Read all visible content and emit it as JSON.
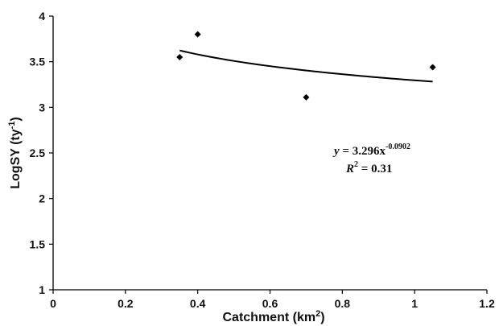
{
  "chart_data": {
    "type": "scatter",
    "xlabel": "Catchment (km",
    "xlabel_sup": "2",
    "xlabel_end": ")",
    "ylabel": "LogSY (ty",
    "ylabel_sup": "-1",
    "ylabel_end": ")",
    "xlim": [
      0,
      1.2
    ],
    "ylim": [
      1,
      4
    ],
    "x_ticks": [
      "0",
      "0.2",
      "0.4",
      "0.6",
      "0.8",
      "1",
      "1.2"
    ],
    "y_ticks": [
      "1",
      "1.5",
      "2",
      "2.5",
      "3",
      "3.5",
      "4"
    ],
    "grid": false,
    "series": [
      {
        "marker": "diamond",
        "color": "#000000",
        "points": [
          {
            "x": 0.35,
            "y": 3.55
          },
          {
            "x": 0.4,
            "y": 3.8
          },
          {
            "x": 0.7,
            "y": 3.11
          },
          {
            "x": 1.05,
            "y": 3.44
          }
        ]
      }
    ],
    "trendline": {
      "type": "power",
      "a": 3.296,
      "b": -0.0902,
      "x_range": [
        0.35,
        1.05
      ],
      "color": "#000000"
    },
    "annotation": {
      "eq_prefix": "y",
      "eq_mid": " = 3.296x",
      "eq_exp": "-0.0902",
      "r2_prefix": "R",
      "r2_sup": "2",
      "r2_value": " = 0.31"
    }
  }
}
